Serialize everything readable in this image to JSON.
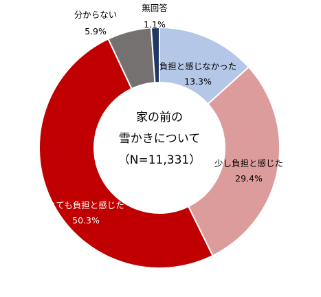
{
  "chart_data": {
    "type": "pie",
    "donut": true,
    "center_title": [
      "家の前の",
      "雪かきについて",
      "（N=11,331）"
    ],
    "slices": [
      {
        "label": "負担と感じなかった",
        "value": 13.3,
        "display": "13.3%",
        "color": "#b4c7e7",
        "label_color": "#000000"
      },
      {
        "label": "少し負担と感じた",
        "value": 29.4,
        "display": "29.4%",
        "color": "#dd9c9c",
        "label_color": "#000000"
      },
      {
        "label": "とても負担と感じた",
        "value": 50.3,
        "display": "50.3%",
        "color": "#c00000",
        "label_color": "#ffffff"
      },
      {
        "label": "分からない",
        "value": 5.9,
        "display": "5.9%",
        "color": "#767171",
        "label_color": "#000000"
      },
      {
        "label": "無回答",
        "value": 1.1,
        "display": "1.1%",
        "color": "#1f3864",
        "label_color": "#000000"
      }
    ]
  }
}
